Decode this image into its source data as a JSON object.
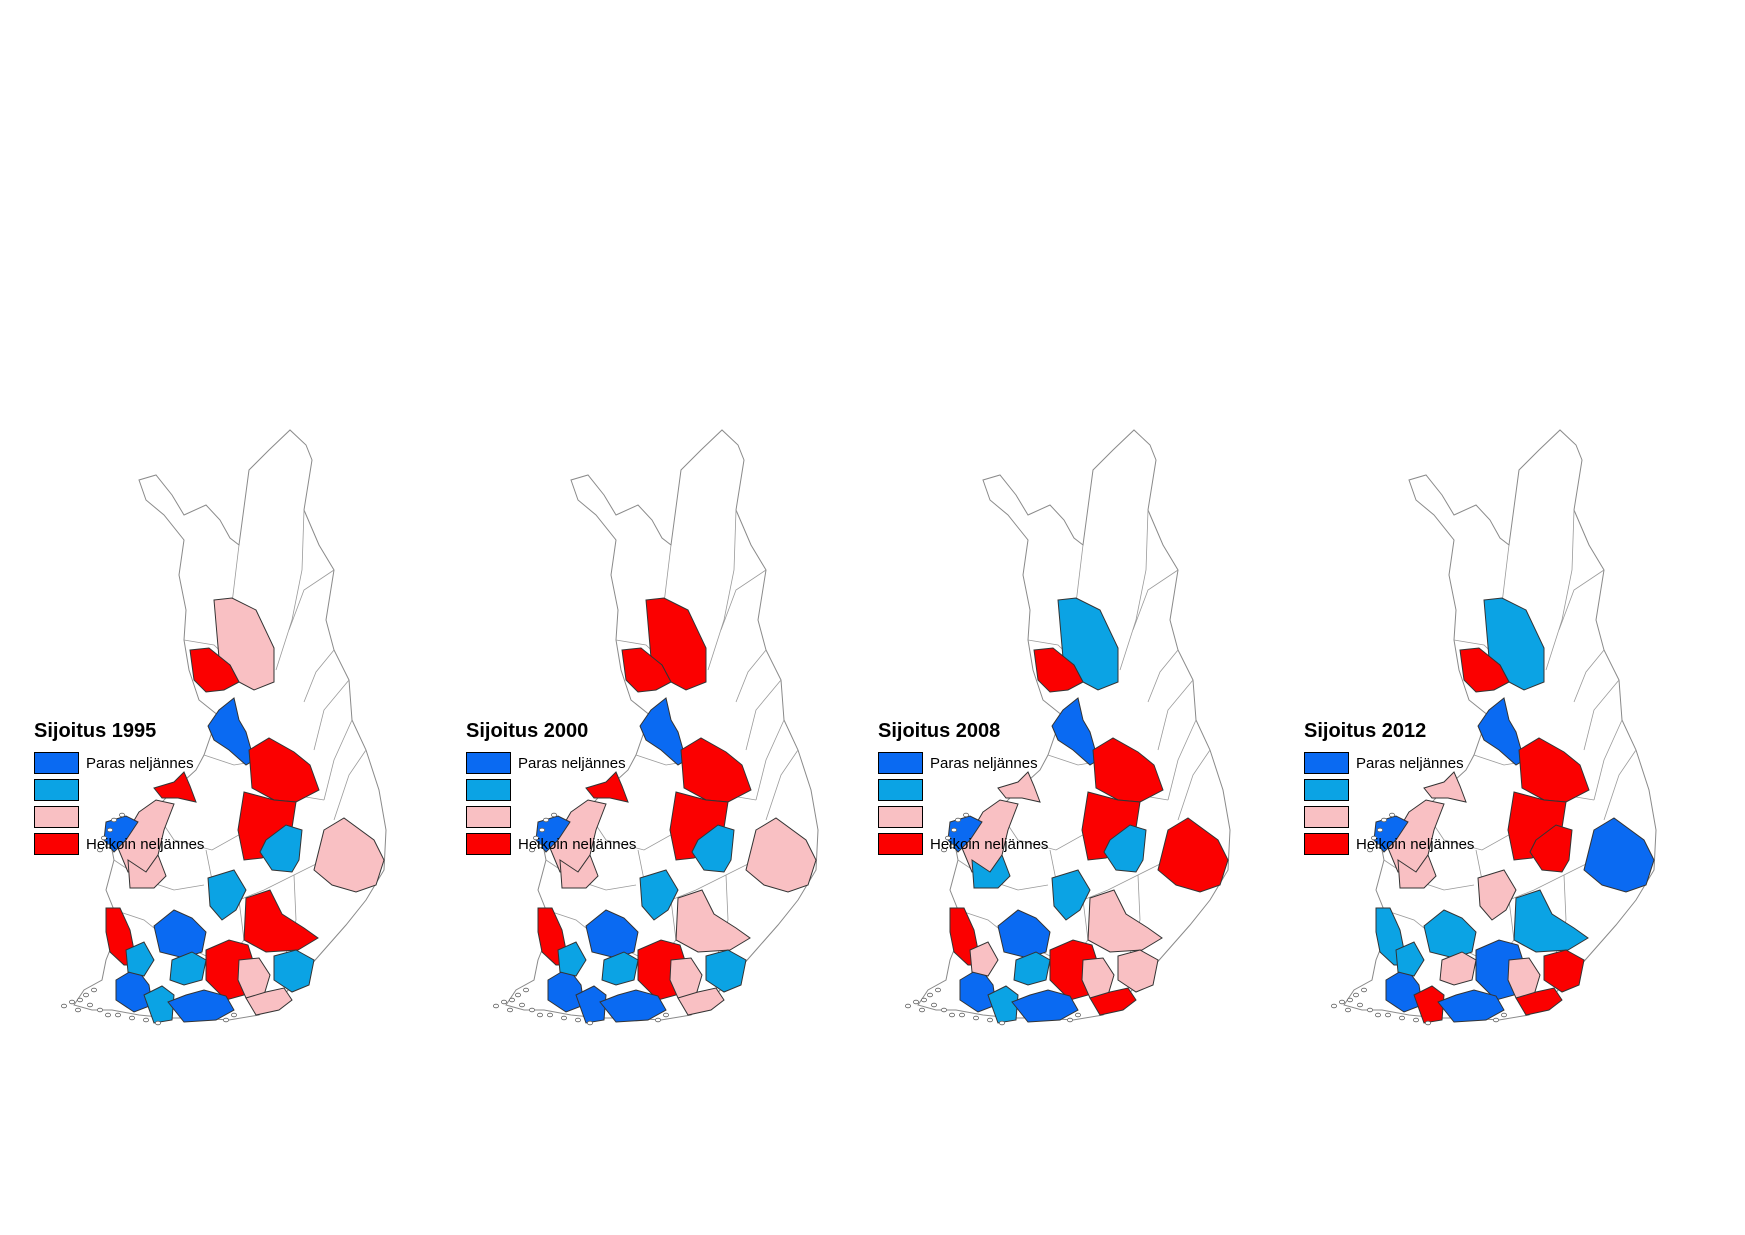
{
  "colors": {
    "best": "#0a6af2",
    "second": "#0ba3e4",
    "third": "#f9c0c3",
    "worst": "#fb0000"
  },
  "legend": [
    {
      "key": "best",
      "label": "Paras neljännes"
    },
    {
      "key": "second",
      "label": ""
    },
    {
      "key": "third",
      "label": ""
    },
    {
      "key": "worst",
      "label": "Heikoin neljännes"
    }
  ],
  "maps": [
    {
      "title": "Sijoitus 1995",
      "regions": {
        "lapland_s": "third",
        "torn": "worst",
        "oulu_coast": "best",
        "kainuu_n": "worst",
        "kainuu_s": "worst",
        "mid_iisalmi": "second",
        "nkarelia": "third",
        "ylivieska": "worst",
        "kokkola": "third",
        "vaasa": "best",
        "seinajoki": "third",
        "jyvaskyla": "second",
        "pori": "worst",
        "tampere": "best",
        "hameen": "second",
        "mikkeli": "worst",
        "kuopio": "worst",
        "savonlinna": "second",
        "lahti": "third",
        "kymi": "third",
        "turku": "best",
        "salo": "second",
        "helsinki": "best",
        "ratakunta_s": "second"
      }
    },
    {
      "title": "Sijoitus 2000",
      "regions": {
        "lapland_s": "worst",
        "torn": "worst",
        "oulu_coast": "best",
        "kainuu_n": "worst",
        "kainuu_s": "worst",
        "mid_iisalmi": "second",
        "nkarelia": "third",
        "ylivieska": "worst",
        "kokkola": "third",
        "vaasa": "best",
        "seinajoki": "third",
        "jyvaskyla": "second",
        "pori": "worst",
        "tampere": "best",
        "hameen": "second",
        "mikkeli": "third",
        "kuopio": "worst",
        "savonlinna": "second",
        "lahti": "third",
        "kymi": "third",
        "turku": "best",
        "salo": "best",
        "helsinki": "best",
        "ratakunta_s": "second"
      }
    },
    {
      "title": "Sijoitus 2008",
      "regions": {
        "lapland_s": "second",
        "torn": "worst",
        "oulu_coast": "best",
        "kainuu_n": "worst",
        "kainuu_s": "worst",
        "mid_iisalmi": "second",
        "nkarelia": "worst",
        "ylivieska": "third",
        "kokkola": "third",
        "vaasa": "best",
        "seinajoki": "second",
        "jyvaskyla": "second",
        "pori": "worst",
        "tampere": "best",
        "hameen": "second",
        "mikkeli": "third",
        "kuopio": "worst",
        "savonlinna": "third",
        "lahti": "third",
        "kymi": "worst",
        "turku": "best",
        "salo": "second",
        "helsinki": "best",
        "ratakunta_s": "third"
      }
    },
    {
      "title": "Sijoitus 2012",
      "regions": {
        "lapland_s": "second",
        "torn": "worst",
        "oulu_coast": "best",
        "kainuu_n": "worst",
        "kainuu_s": "worst",
        "mid_iisalmi": "worst",
        "nkarelia": "best",
        "ylivieska": "third",
        "kokkola": "third",
        "vaasa": "best",
        "seinajoki": "third",
        "jyvaskyla": "third",
        "pori": "second",
        "tampere": "second",
        "hameen": "third",
        "mikkeli": "second",
        "kuopio": "best",
        "savonlinna": "worst",
        "lahti": "third",
        "kymi": "worst",
        "turku": "best",
        "salo": "worst",
        "helsinki": "best",
        "ratakunta_s": "second"
      }
    }
  ]
}
